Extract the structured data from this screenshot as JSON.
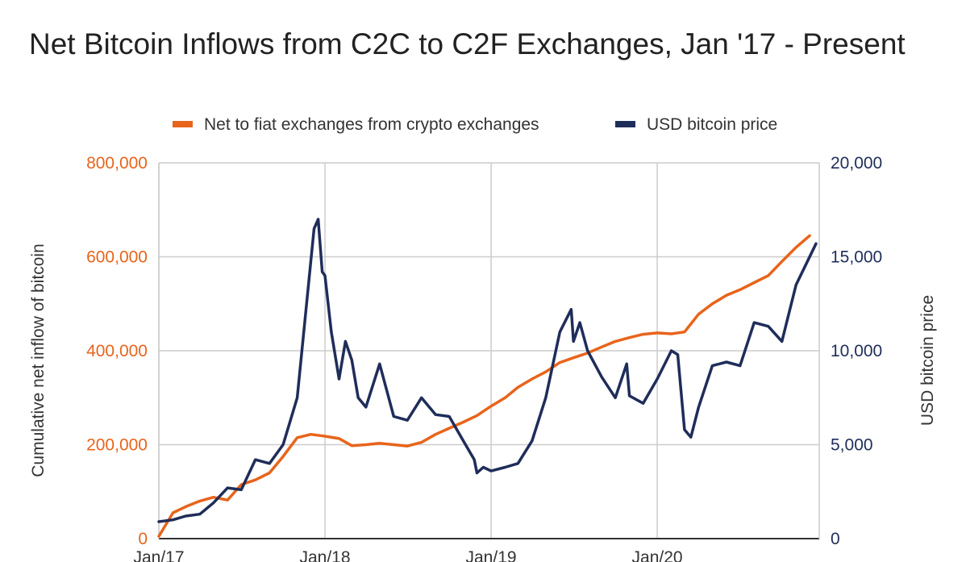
{
  "chart_data": {
    "type": "line",
    "title": "Net Bitcoin Inflows from C2C to C2F Exchanges, Jan '17 - Present",
    "ylabel_left": "Cumulative net inflow of bitcoin",
    "ylabel_right": "USD bitcoin price",
    "ylim_left": [
      0,
      800000
    ],
    "ylim_right": [
      0,
      20000
    ],
    "yticks_left": [
      "0",
      "200,000",
      "400,000",
      "600,000",
      "800,000"
    ],
    "yticks_right": [
      "0",
      "5,000",
      "10,000",
      "15,000",
      "20,000"
    ],
    "xticks": [
      "Jan/17",
      "Jan/18",
      "Jan/19",
      "Jan/20"
    ],
    "grid": true,
    "legend_position": "top",
    "series": [
      {
        "name": "Net to fiat exchanges from crypto exchanges",
        "axis": "left",
        "color": "#E8641B",
        "x": [
          "2017-01",
          "2017-02",
          "2017-03",
          "2017-04",
          "2017-05",
          "2017-06",
          "2017-07",
          "2017-08",
          "2017-09",
          "2017-10",
          "2017-11",
          "2017-12",
          "2018-01",
          "2018-02",
          "2018-03",
          "2018-04",
          "2018-05",
          "2018-06",
          "2018-07",
          "2018-08",
          "2018-09",
          "2018-10",
          "2018-11",
          "2018-12",
          "2019-01",
          "2019-02",
          "2019-03",
          "2019-04",
          "2019-05",
          "2019-06",
          "2019-07",
          "2019-08",
          "2019-09",
          "2019-10",
          "2019-11",
          "2019-12",
          "2020-01",
          "2020-02",
          "2020-03",
          "2020-04",
          "2020-05",
          "2020-06",
          "2020-07",
          "2020-08",
          "2020-09",
          "2020-10",
          "2020-11",
          "2020-12"
        ],
        "values": [
          5000,
          55000,
          68000,
          80000,
          88000,
          82000,
          115000,
          125000,
          140000,
          175000,
          215000,
          222000,
          218000,
          213000,
          198000,
          200000,
          203000,
          200000,
          197000,
          205000,
          222000,
          235000,
          248000,
          262000,
          282000,
          300000,
          322000,
          340000,
          355000,
          375000,
          385000,
          395000,
          408000,
          420000,
          428000,
          435000,
          438000,
          436000,
          440000,
          478000,
          500000,
          518000,
          530000,
          545000,
          560000,
          590000,
          620000,
          645000
        ]
      },
      {
        "name": "USD bitcoin price",
        "axis": "right",
        "color": "#1F2D5A",
        "x": [
          "2017-01",
          "2017-02",
          "2017-03",
          "2017-04",
          "2017-05",
          "2017-06",
          "2017-07",
          "2017-08",
          "2017-09",
          "2017-10",
          "2017-11",
          "2017-12-08",
          "2017-12-17",
          "2017-12-26",
          "2018-01",
          "2018-01-15",
          "2018-02",
          "2018-02-15",
          "2018-03",
          "2018-03-15",
          "2018-04",
          "2018-05",
          "2018-06",
          "2018-07",
          "2018-08",
          "2018-09",
          "2018-10",
          "2018-11",
          "2018-11-25",
          "2018-12",
          "2018-12-15",
          "2019-01",
          "2019-02",
          "2019-03",
          "2019-04",
          "2019-05",
          "2019-06",
          "2019-06-26",
          "2019-07",
          "2019-07-15",
          "2019-08",
          "2019-09",
          "2019-10",
          "2019-10-26",
          "2019-11",
          "2019-12",
          "2020-01",
          "2020-02",
          "2020-02-15",
          "2020-03",
          "2020-03-15",
          "2020-04",
          "2020-05",
          "2020-06",
          "2020-07",
          "2020-08",
          "2020-09",
          "2020-10",
          "2020-11",
          "2020-12-15"
        ],
        "values": [
          900,
          1000,
          1200,
          1300,
          1900,
          2700,
          2600,
          4200,
          4000,
          5000,
          7500,
          16500,
          17000,
          14200,
          14000,
          11000,
          8500,
          10500,
          9500,
          7500,
          7000,
          9300,
          6500,
          6300,
          7500,
          6600,
          6500,
          5200,
          4200,
          3500,
          3800,
          3600,
          3800,
          4000,
          5200,
          7500,
          11000,
          12200,
          10500,
          11500,
          10000,
          8600,
          7500,
          9300,
          7600,
          7200,
          8500,
          10000,
          9800,
          5800,
          5400,
          7000,
          9200,
          9400,
          9200,
          11500,
          11300,
          10500,
          13500,
          15700
        ]
      }
    ]
  }
}
